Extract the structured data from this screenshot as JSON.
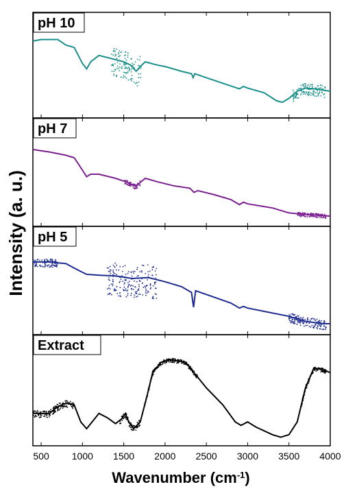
{
  "chart_data": {
    "type": "line",
    "xlabel": "Wavenumber (cm",
    "xlabel_sup": "-1",
    "xlabel_close": ")",
    "ylabel": "Intensity (a. u.)",
    "xlim": [
      400,
      4000
    ],
    "x_ticks": [
      "500",
      "1000",
      "1500",
      "2000",
      "2500",
      "3000",
      "3500",
      "4000"
    ],
    "grid": false,
    "series": [
      {
        "name": "pH 10",
        "color": "#1a8f8a",
        "scatter_color": "#1a8f8a",
        "ylim": [
          0,
          1
        ],
        "points": [
          [
            400,
            0.88
          ],
          [
            500,
            0.9
          ],
          [
            700,
            0.9
          ],
          [
            800,
            0.83
          ],
          [
            900,
            0.8
          ],
          [
            1000,
            0.6
          ],
          [
            1050,
            0.53
          ],
          [
            1100,
            0.62
          ],
          [
            1200,
            0.7
          ],
          [
            1350,
            0.66
          ],
          [
            1500,
            0.62
          ],
          [
            1580,
            0.58
          ],
          [
            1650,
            0.5
          ],
          [
            1700,
            0.56
          ],
          [
            1760,
            0.62
          ],
          [
            1900,
            0.58
          ],
          [
            2000,
            0.56
          ],
          [
            2200,
            0.5
          ],
          [
            2320,
            0.47
          ],
          [
            2340,
            0.42
          ],
          [
            2360,
            0.47
          ],
          [
            2500,
            0.42
          ],
          [
            2700,
            0.35
          ],
          [
            2900,
            0.28
          ],
          [
            2950,
            0.31
          ],
          [
            3000,
            0.29
          ],
          [
            3200,
            0.23
          ],
          [
            3350,
            0.13
          ],
          [
            3420,
            0.11
          ],
          [
            3500,
            0.16
          ],
          [
            3600,
            0.25
          ],
          [
            3700,
            0.29
          ],
          [
            3800,
            0.28
          ],
          [
            4000,
            0.25
          ]
        ],
        "scatter_ranges": [
          [
            1350,
            1720,
            0.35
          ],
          [
            3550,
            3950,
            0.15
          ]
        ]
      },
      {
        "name": "pH 7",
        "color": "#7a1f8f",
        "scatter_color": "#7a1f8f",
        "ylim": [
          0,
          1
        ],
        "points": [
          [
            400,
            0.85
          ],
          [
            600,
            0.82
          ],
          [
            700,
            0.8
          ],
          [
            800,
            0.78
          ],
          [
            900,
            0.75
          ],
          [
            1000,
            0.6
          ],
          [
            1050,
            0.52
          ],
          [
            1100,
            0.55
          ],
          [
            1200,
            0.55
          ],
          [
            1400,
            0.5
          ],
          [
            1550,
            0.45
          ],
          [
            1650,
            0.4
          ],
          [
            1700,
            0.45
          ],
          [
            1760,
            0.5
          ],
          [
            1900,
            0.46
          ],
          [
            2100,
            0.41
          ],
          [
            2300,
            0.38
          ],
          [
            2350,
            0.33
          ],
          [
            2400,
            0.35
          ],
          [
            2600,
            0.3
          ],
          [
            2800,
            0.24
          ],
          [
            2900,
            0.18
          ],
          [
            2950,
            0.21
          ],
          [
            3000,
            0.19
          ],
          [
            3300,
            0.14
          ],
          [
            3500,
            0.08
          ],
          [
            3700,
            0.06
          ],
          [
            3900,
            0.05
          ],
          [
            4000,
            0.04
          ]
        ],
        "scatter_ranges": [
          [
            1500,
            1700,
            0.06
          ],
          [
            3600,
            3950,
            0.05
          ]
        ]
      },
      {
        "name": "pH 5",
        "color": "#1c2a8f",
        "scatter_color": "#1c2a8f",
        "ylim": [
          0,
          1
        ],
        "points": [
          [
            400,
            0.8
          ],
          [
            600,
            0.8
          ],
          [
            800,
            0.78
          ],
          [
            950,
            0.7
          ],
          [
            1050,
            0.65
          ],
          [
            1200,
            0.64
          ],
          [
            1400,
            0.63
          ],
          [
            1600,
            0.6
          ],
          [
            1800,
            0.61
          ],
          [
            2000,
            0.56
          ],
          [
            2200,
            0.5
          ],
          [
            2320,
            0.43
          ],
          [
            2345,
            0.25
          ],
          [
            2370,
            0.45
          ],
          [
            2400,
            0.44
          ],
          [
            2600,
            0.37
          ],
          [
            2800,
            0.3
          ],
          [
            2900,
            0.24
          ],
          [
            2950,
            0.26
          ],
          [
            3000,
            0.24
          ],
          [
            3200,
            0.2
          ],
          [
            3500,
            0.14
          ],
          [
            3700,
            0.08
          ],
          [
            3900,
            0.05
          ],
          [
            4000,
            0.05
          ]
        ],
        "scatter_ranges": [
          [
            400,
            700,
            0.1
          ],
          [
            1300,
            1900,
            0.4
          ],
          [
            3500,
            3950,
            0.12
          ]
        ]
      },
      {
        "name": "Extract",
        "color": "#000000",
        "scatter_color": "#000000",
        "ylim": [
          0,
          1
        ],
        "points": [
          [
            400,
            0.3
          ],
          [
            500,
            0.3
          ],
          [
            600,
            0.3
          ],
          [
            700,
            0.38
          ],
          [
            800,
            0.42
          ],
          [
            900,
            0.4
          ],
          [
            980,
            0.2
          ],
          [
            1050,
            0.12
          ],
          [
            1100,
            0.18
          ],
          [
            1200,
            0.3
          ],
          [
            1300,
            0.25
          ],
          [
            1400,
            0.18
          ],
          [
            1480,
            0.24
          ],
          [
            1520,
            0.3
          ],
          [
            1560,
            0.2
          ],
          [
            1620,
            0.12
          ],
          [
            1700,
            0.2
          ],
          [
            1780,
            0.5
          ],
          [
            1850,
            0.78
          ],
          [
            1950,
            0.9
          ],
          [
            2050,
            0.93
          ],
          [
            2150,
            0.92
          ],
          [
            2250,
            0.9
          ],
          [
            2350,
            0.78
          ],
          [
            2500,
            0.6
          ],
          [
            2700,
            0.4
          ],
          [
            2850,
            0.2
          ],
          [
            2920,
            0.16
          ],
          [
            3000,
            0.2
          ],
          [
            3100,
            0.14
          ],
          [
            3300,
            0.05
          ],
          [
            3400,
            0.02
          ],
          [
            3500,
            0.05
          ],
          [
            3600,
            0.2
          ],
          [
            3700,
            0.6
          ],
          [
            3800,
            0.83
          ],
          [
            3900,
            0.82
          ],
          [
            4000,
            0.78
          ]
        ],
        "scatter_ranges": [
          [
            400,
            900,
            0.08
          ],
          [
            1450,
            1700,
            0.08
          ],
          [
            1750,
            2400,
            0.05
          ],
          [
            3650,
            3950,
            0.06
          ]
        ]
      }
    ]
  }
}
